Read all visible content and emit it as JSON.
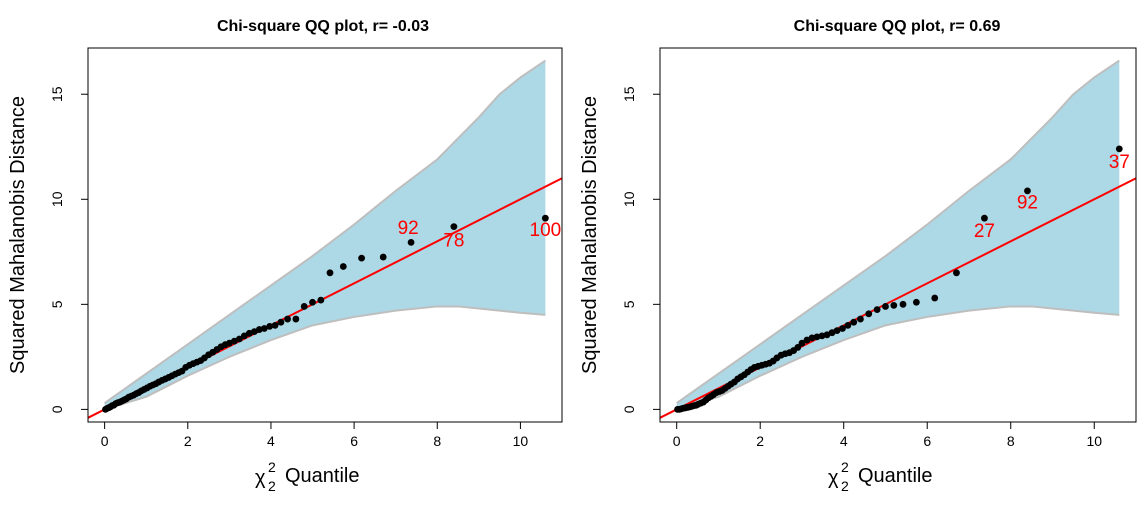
{
  "chart_data": [
    {
      "type": "scatter",
      "title": "Chi-square QQ plot, r= -0.03",
      "xlabel_symbol": "χ",
      "xlabel_sub": "2",
      "xlabel_sup": "2",
      "xlabel_text": "Quantile",
      "ylabel": "Squared Mahalanobis Distance",
      "xlim": [
        -0.4,
        11.0
      ],
      "ylim": [
        -0.6,
        17.2
      ],
      "xticks": [
        0,
        2,
        4,
        6,
        8,
        10
      ],
      "yticks": [
        0,
        5,
        10,
        15
      ],
      "grid": false,
      "point_color": "#000000",
      "line_color": "#ff0000",
      "band_color": "#add8e6",
      "band_edge_color": "#bebebe",
      "reference_line": {
        "intercept": 0.0,
        "slope": 1.0
      },
      "band": {
        "x": [
          0.0,
          1.0,
          2.0,
          3.0,
          4.0,
          5.0,
          6.0,
          7.0,
          8.0,
          8.5,
          9.0,
          9.5,
          10.0,
          10.6
        ],
        "upper": [
          0.3,
          1.7,
          3.1,
          4.5,
          5.9,
          7.3,
          8.8,
          10.4,
          11.9,
          12.9,
          13.9,
          15.0,
          15.8,
          16.6
        ],
        "lower": [
          0.0,
          0.6,
          1.6,
          2.5,
          3.3,
          4.0,
          4.4,
          4.7,
          4.9,
          4.9,
          4.8,
          4.7,
          4.6,
          4.5
        ]
      },
      "points": {
        "x": [
          0.02,
          0.06,
          0.1,
          0.14,
          0.18,
          0.22,
          0.27,
          0.32,
          0.37,
          0.42,
          0.47,
          0.52,
          0.58,
          0.64,
          0.7,
          0.76,
          0.82,
          0.88,
          0.95,
          1.02,
          1.09,
          1.16,
          1.23,
          1.3,
          1.38,
          1.46,
          1.54,
          1.62,
          1.7,
          1.78,
          1.86,
          1.95,
          2.04,
          2.13,
          2.22,
          2.31,
          2.4,
          2.5,
          2.6,
          2.7,
          2.8,
          2.9,
          3.0,
          3.12,
          3.24,
          3.36,
          3.48,
          3.6,
          3.72,
          3.84,
          3.97,
          4.1,
          4.24,
          4.4,
          4.6,
          4.8,
          5.0,
          5.2,
          5.42,
          5.74,
          6.18,
          6.7,
          7.37,
          8.4,
          10.6
        ],
        "y": [
          0.0,
          0.05,
          0.08,
          0.12,
          0.18,
          0.2,
          0.28,
          0.32,
          0.35,
          0.4,
          0.45,
          0.5,
          0.58,
          0.63,
          0.68,
          0.75,
          0.8,
          0.88,
          0.95,
          1.02,
          1.1,
          1.16,
          1.22,
          1.3,
          1.38,
          1.45,
          1.52,
          1.6,
          1.68,
          1.75,
          1.82,
          2.0,
          2.1,
          2.18,
          2.25,
          2.32,
          2.45,
          2.6,
          2.72,
          2.85,
          2.98,
          3.08,
          3.15,
          3.25,
          3.35,
          3.5,
          3.62,
          3.7,
          3.8,
          3.85,
          3.95,
          4.0,
          4.15,
          4.3,
          4.3,
          4.9,
          5.1,
          5.2,
          6.5,
          6.8,
          7.2,
          7.25,
          7.95,
          8.7,
          9.1
        ]
      },
      "annotations": [
        {
          "text": "92",
          "x": 7.3,
          "y": 8.35
        },
        {
          "text": "78",
          "x": 8.4,
          "y": 7.75
        },
        {
          "text": "100",
          "x": 10.6,
          "y": 8.25
        }
      ]
    },
    {
      "type": "scatter",
      "title": "Chi-square QQ plot, r= 0.69",
      "xlabel_symbol": "χ",
      "xlabel_sub": "2",
      "xlabel_sup": "2",
      "xlabel_text": "Quantile",
      "ylabel": "Squared Mahalanobis Distance",
      "xlim": [
        -0.4,
        11.0
      ],
      "ylim": [
        -0.6,
        17.2
      ],
      "xticks": [
        0,
        2,
        4,
        6,
        8,
        10
      ],
      "yticks": [
        0,
        5,
        10,
        15
      ],
      "grid": false,
      "point_color": "#000000",
      "line_color": "#ff0000",
      "band_color": "#add8e6",
      "band_edge_color": "#bebebe",
      "reference_line": {
        "intercept": 0.0,
        "slope": 1.0
      },
      "band": {
        "x": [
          0.0,
          1.0,
          2.0,
          3.0,
          4.0,
          5.0,
          6.0,
          7.0,
          8.0,
          8.5,
          9.0,
          9.5,
          10.0,
          10.6
        ],
        "upper": [
          0.3,
          1.7,
          3.1,
          4.5,
          5.9,
          7.3,
          8.8,
          10.4,
          11.9,
          12.9,
          13.9,
          15.0,
          15.8,
          16.6
        ],
        "lower": [
          0.0,
          0.6,
          1.6,
          2.5,
          3.3,
          4.0,
          4.4,
          4.7,
          4.9,
          4.9,
          4.8,
          4.7,
          4.6,
          4.5
        ]
      },
      "points": {
        "x": [
          0.02,
          0.06,
          0.1,
          0.14,
          0.18,
          0.22,
          0.27,
          0.32,
          0.37,
          0.42,
          0.47,
          0.52,
          0.58,
          0.64,
          0.7,
          0.76,
          0.82,
          0.88,
          0.95,
          1.02,
          1.09,
          1.16,
          1.23,
          1.3,
          1.38,
          1.46,
          1.54,
          1.62,
          1.7,
          1.78,
          1.86,
          1.95,
          2.04,
          2.13,
          2.22,
          2.31,
          2.4,
          2.5,
          2.6,
          2.7,
          2.8,
          2.9,
          3.0,
          3.12,
          3.24,
          3.36,
          3.48,
          3.6,
          3.72,
          3.84,
          3.97,
          4.1,
          4.24,
          4.4,
          4.6,
          4.8,
          5.0,
          5.2,
          5.42,
          5.74,
          6.18,
          6.7,
          7.37,
          8.4,
          10.6
        ],
        "y": [
          0.0,
          0.0,
          0.02,
          0.05,
          0.06,
          0.08,
          0.1,
          0.12,
          0.15,
          0.18,
          0.2,
          0.25,
          0.3,
          0.35,
          0.45,
          0.55,
          0.62,
          0.7,
          0.8,
          0.85,
          0.9,
          1.0,
          1.1,
          1.2,
          1.3,
          1.45,
          1.55,
          1.65,
          1.78,
          1.9,
          2.0,
          2.05,
          2.1,
          2.15,
          2.2,
          2.3,
          2.45,
          2.58,
          2.65,
          2.7,
          2.8,
          2.95,
          3.15,
          3.3,
          3.4,
          3.45,
          3.5,
          3.55,
          3.65,
          3.75,
          3.85,
          4.0,
          4.15,
          4.3,
          4.55,
          4.75,
          4.9,
          4.95,
          5.0,
          5.1,
          5.3,
          6.5,
          9.1,
          10.4,
          12.4
        ]
      },
      "annotations": [
        {
          "text": "27",
          "x": 7.37,
          "y": 8.2
        },
        {
          "text": "92",
          "x": 8.4,
          "y": 9.55
        },
        {
          "text": "37",
          "x": 10.6,
          "y": 11.5
        }
      ]
    }
  ]
}
